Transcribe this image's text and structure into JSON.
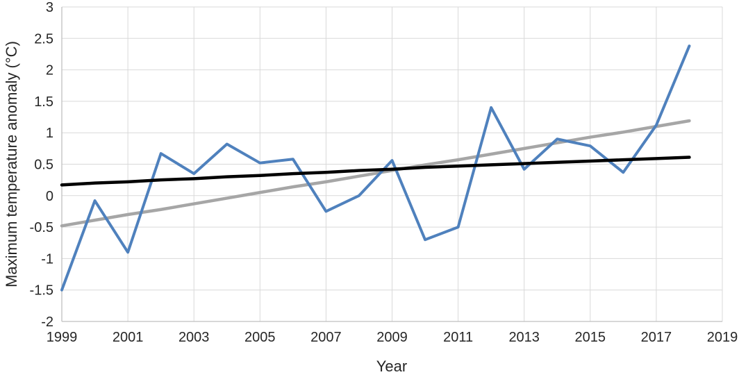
{
  "chart_data": {
    "type": "line",
    "title": "",
    "xlabel": "Year",
    "ylabel": "Maximum temperature anomaly (°C)",
    "xlim": [
      1999,
      2019
    ],
    "ylim": [
      -2,
      3
    ],
    "x_tick_step": 2,
    "y_tick_step": 0.5,
    "x_ticks": [
      "1999",
      "2001",
      "2003",
      "2005",
      "2007",
      "2009",
      "2011",
      "2013",
      "2015",
      "2017",
      "2019"
    ],
    "y_ticks": [
      "3",
      "2.5",
      "2",
      "1.5",
      "1",
      "0.5",
      "0",
      "-0.5",
      "-1",
      "-1.5",
      "-2"
    ],
    "grid": true,
    "legend_position": "none",
    "x": [
      1999,
      2000,
      2001,
      2002,
      2003,
      2004,
      2005,
      2006,
      2007,
      2008,
      2009,
      2010,
      2011,
      2012,
      2013,
      2014,
      2015,
      2016,
      2017,
      2018
    ],
    "series": [
      {
        "name": "linear_trend_gray",
        "color": "#A6A6A6",
        "stroke_width": 4.5,
        "values": [
          -0.48,
          -0.39,
          -0.3,
          -0.22,
          -0.13,
          -0.04,
          0.05,
          0.14,
          0.22,
          0.31,
          0.4,
          0.49,
          0.57,
          0.66,
          0.75,
          0.84,
          0.93,
          1.01,
          1.1,
          1.19
        ]
      },
      {
        "name": "annual_anomaly_blue",
        "color": "#4F81BD",
        "stroke_width": 4,
        "values": [
          -1.5,
          -0.08,
          -0.9,
          0.67,
          0.35,
          0.82,
          0.52,
          0.58,
          -0.25,
          0.0,
          0.56,
          -0.7,
          -0.5,
          1.4,
          0.42,
          0.9,
          0.79,
          0.37,
          1.12,
          2.38
        ]
      },
      {
        "name": "smoothed_trend_black",
        "color": "#000000",
        "stroke_width": 4.5,
        "values": [
          0.17,
          0.2,
          0.22,
          0.25,
          0.27,
          0.3,
          0.32,
          0.35,
          0.37,
          0.4,
          0.42,
          0.45,
          0.47,
          0.49,
          0.51,
          0.53,
          0.55,
          0.57,
          0.59,
          0.61
        ]
      }
    ]
  },
  "style": {
    "gridline_color": "#D9D9D9",
    "axis_color": "#BFBFBF",
    "text_color": "#262626",
    "background": "#ffffff"
  }
}
